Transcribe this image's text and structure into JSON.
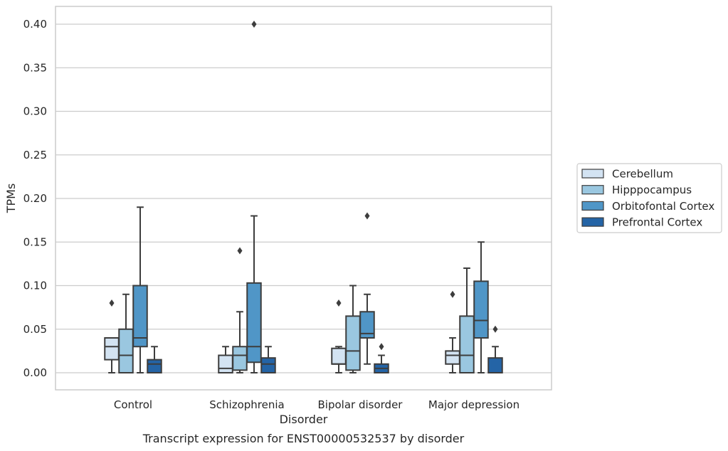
{
  "chart_data": {
    "type": "box",
    "xlabel": "Disorder",
    "ylabel": "TPMs",
    "caption": "Transcript expression for ENST00000532537 by disorder",
    "ylim": [
      -0.02,
      0.42
    ],
    "yticks": [
      "0.00",
      "0.05",
      "0.10",
      "0.15",
      "0.20",
      "0.25",
      "0.30",
      "0.35",
      "0.40"
    ],
    "grid": "horizontal",
    "legend_position": "right",
    "categories": [
      "Control",
      "Schizophrenia",
      "Bipolar disorder",
      "Major depression"
    ],
    "series": [
      {
        "name": "Cerebellum",
        "color": "#d3e3f2",
        "boxes": [
          {
            "min": 0.0,
            "q1": 0.015,
            "median": 0.03,
            "q3": 0.04,
            "max": 0.04,
            "outliers": [
              0.08
            ]
          },
          {
            "min": 0.0,
            "q1": 0.0,
            "median": 0.005,
            "q3": 0.02,
            "max": 0.03,
            "outliers": []
          },
          {
            "min": 0.0,
            "q1": 0.01,
            "median": 0.01,
            "q3": 0.028,
            "max": 0.03,
            "outliers": [
              0.08
            ]
          },
          {
            "min": 0.0,
            "q1": 0.01,
            "median": 0.02,
            "q3": 0.025,
            "max": 0.04,
            "outliers": [
              0.09
            ]
          }
        ]
      },
      {
        "name": "Hipppocampus",
        "color": "#9ac7e0",
        "boxes": [
          {
            "min": 0.0,
            "q1": 0.0,
            "median": 0.02,
            "q3": 0.05,
            "max": 0.09,
            "outliers": []
          },
          {
            "min": 0.0,
            "q1": 0.003,
            "median": 0.02,
            "q3": 0.03,
            "max": 0.07,
            "outliers": [
              0.14
            ]
          },
          {
            "min": 0.0,
            "q1": 0.003,
            "median": 0.025,
            "q3": 0.065,
            "max": 0.1,
            "outliers": []
          },
          {
            "min": 0.0,
            "q1": 0.0,
            "median": 0.02,
            "q3": 0.065,
            "max": 0.12,
            "outliers": []
          }
        ]
      },
      {
        "name": "Orbitofontal Cortex",
        "color": "#5096c7",
        "boxes": [
          {
            "min": 0.0,
            "q1": 0.03,
            "median": 0.04,
            "q3": 0.1,
            "max": 0.19,
            "outliers": []
          },
          {
            "min": 0.0,
            "q1": 0.012,
            "median": 0.03,
            "q3": 0.103,
            "max": 0.18,
            "outliers": [
              0.4
            ]
          },
          {
            "min": 0.01,
            "q1": 0.04,
            "median": 0.045,
            "q3": 0.07,
            "max": 0.09,
            "outliers": [
              0.18
            ]
          },
          {
            "min": 0.0,
            "q1": 0.04,
            "median": 0.06,
            "q3": 0.105,
            "max": 0.15,
            "outliers": []
          }
        ]
      },
      {
        "name": "Prefrontal Cortex",
        "color": "#2464a6",
        "boxes": [
          {
            "min": 0.0,
            "q1": 0.0,
            "median": 0.01,
            "q3": 0.015,
            "max": 0.03,
            "outliers": []
          },
          {
            "min": 0.0,
            "q1": 0.0,
            "median": 0.01,
            "q3": 0.017,
            "max": 0.03,
            "outliers": []
          },
          {
            "min": 0.0,
            "q1": 0.0,
            "median": 0.005,
            "q3": 0.01,
            "max": 0.02,
            "outliers": [
              0.03
            ]
          },
          {
            "min": 0.0,
            "q1": 0.0,
            "median": 0.0,
            "q3": 0.017,
            "max": 0.03,
            "outliers": [
              0.05
            ]
          }
        ]
      }
    ]
  }
}
